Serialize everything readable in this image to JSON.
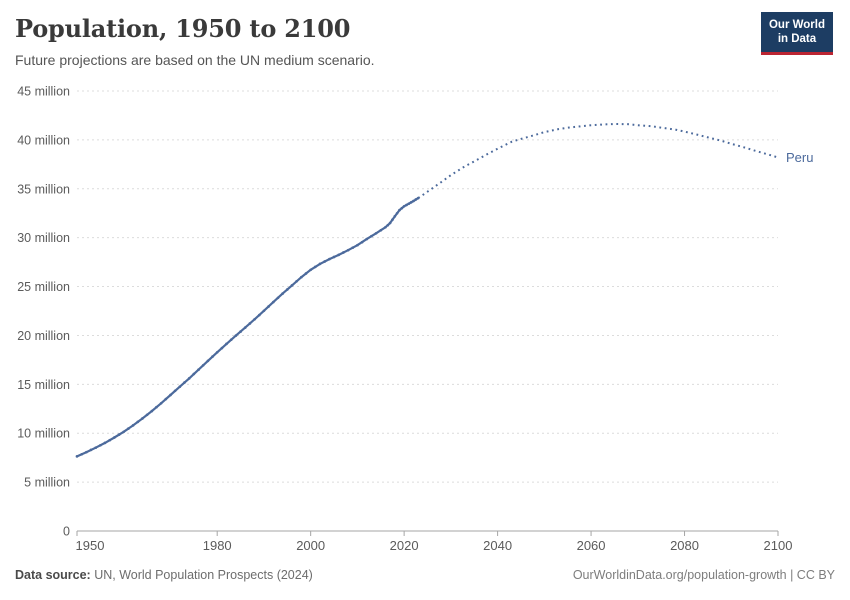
{
  "header": {
    "title": "Population, 1950 to 2100",
    "subtitle": "Future projections are based on the UN medium scenario.",
    "logo": {
      "line1": "Our World",
      "line2": "in Data",
      "bg_color": "#1d3d63",
      "accent_color": "#bb2532"
    }
  },
  "chart_data": {
    "type": "line",
    "title": "Population, 1950 to 2100",
    "entity": "Peru",
    "end_label": "Peru",
    "unit": "million people",
    "xlim": [
      1950,
      2100
    ],
    "ylim": [
      0,
      45
    ],
    "grid": true,
    "line_color": "#4c6a9c",
    "y_axis": {
      "ticks": [
        {
          "value": 0,
          "label": "0"
        },
        {
          "value": 5,
          "label": "5 million"
        },
        {
          "value": 10,
          "label": "10 million"
        },
        {
          "value": 15,
          "label": "15 million"
        },
        {
          "value": 20,
          "label": "20 million"
        },
        {
          "value": 25,
          "label": "25 million"
        },
        {
          "value": 30,
          "label": "30 million"
        },
        {
          "value": 35,
          "label": "35 million"
        },
        {
          "value": 40,
          "label": "40 million"
        },
        {
          "value": 45,
          "label": "45 million"
        }
      ]
    },
    "x_axis": {
      "ticks": [
        {
          "value": 1950,
          "label": "1950"
        },
        {
          "value": 1980,
          "label": "1980"
        },
        {
          "value": 2000,
          "label": "2000"
        },
        {
          "value": 2020,
          "label": "2020"
        },
        {
          "value": 2040,
          "label": "2040"
        },
        {
          "value": 2060,
          "label": "2060"
        },
        {
          "value": 2080,
          "label": "2080"
        },
        {
          "value": 2100,
          "label": "2100"
        }
      ]
    },
    "series": [
      {
        "name": "Peru (estimates)",
        "style": "solid",
        "points": [
          [
            1950,
            7.63
          ],
          [
            1952,
            8.06
          ],
          [
            1954,
            8.52
          ],
          [
            1956,
            9.01
          ],
          [
            1958,
            9.56
          ],
          [
            1960,
            10.15
          ],
          [
            1962,
            10.8
          ],
          [
            1964,
            11.51
          ],
          [
            1966,
            12.26
          ],
          [
            1968,
            13.06
          ],
          [
            1970,
            13.91
          ],
          [
            1972,
            14.76
          ],
          [
            1974,
            15.61
          ],
          [
            1976,
            16.5
          ],
          [
            1978,
            17.4
          ],
          [
            1980,
            18.28
          ],
          [
            1982,
            19.14
          ],
          [
            1984,
            19.98
          ],
          [
            1986,
            20.8
          ],
          [
            1988,
            21.65
          ],
          [
            1990,
            22.52
          ],
          [
            1992,
            23.41
          ],
          [
            1994,
            24.28
          ],
          [
            1996,
            25.12
          ],
          [
            1998,
            25.96
          ],
          [
            2000,
            26.71
          ],
          [
            2002,
            27.32
          ],
          [
            2004,
            27.81
          ],
          [
            2006,
            28.24
          ],
          [
            2008,
            28.72
          ],
          [
            2010,
            29.23
          ],
          [
            2012,
            29.85
          ],
          [
            2014,
            30.45
          ],
          [
            2016,
            31.06
          ],
          [
            2017,
            31.5
          ],
          [
            2018,
            32.17
          ],
          [
            2019,
            32.82
          ],
          [
            2020,
            33.21
          ],
          [
            2021,
            33.47
          ],
          [
            2022,
            33.75
          ],
          [
            2023,
            34.05
          ]
        ]
      },
      {
        "name": "Peru (UN medium projection)",
        "style": "dotted",
        "points": [
          [
            2023,
            34.05
          ],
          [
            2025,
            34.7
          ],
          [
            2028,
            35.7
          ],
          [
            2030,
            36.4
          ],
          [
            2033,
            37.3
          ],
          [
            2035,
            37.8
          ],
          [
            2038,
            38.6
          ],
          [
            2040,
            39.1
          ],
          [
            2043,
            39.8
          ],
          [
            2045,
            40.1
          ],
          [
            2048,
            40.5
          ],
          [
            2050,
            40.8
          ],
          [
            2053,
            41.1
          ],
          [
            2055,
            41.25
          ],
          [
            2058,
            41.4
          ],
          [
            2060,
            41.5
          ],
          [
            2063,
            41.58
          ],
          [
            2065,
            41.62
          ],
          [
            2068,
            41.6
          ],
          [
            2070,
            41.5
          ],
          [
            2073,
            41.4
          ],
          [
            2075,
            41.25
          ],
          [
            2078,
            41.05
          ],
          [
            2080,
            40.85
          ],
          [
            2083,
            40.5
          ],
          [
            2085,
            40.25
          ],
          [
            2088,
            39.9
          ],
          [
            2090,
            39.6
          ],
          [
            2093,
            39.2
          ],
          [
            2095,
            38.9
          ],
          [
            2098,
            38.5
          ],
          [
            2100,
            38.2
          ]
        ]
      }
    ]
  },
  "footer": {
    "source_label": "Data source:",
    "source_value": " UN, World Population Prospects (2024)",
    "credit": "OurWorldinData.org/population-growth | CC BY"
  }
}
